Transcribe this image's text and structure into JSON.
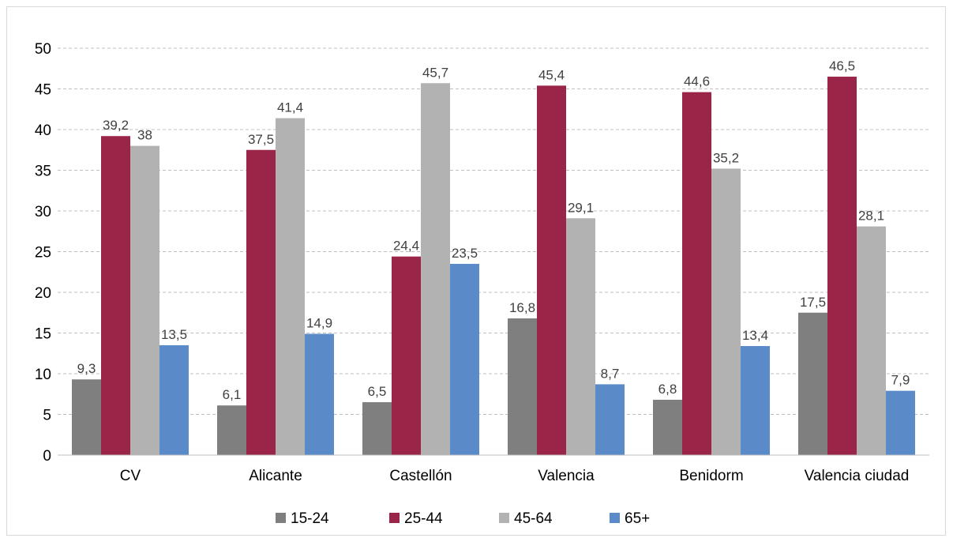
{
  "chart_data": {
    "type": "bar",
    "categories": [
      "CV",
      "Alicante",
      "Castellón",
      "Valencia",
      "Benidorm",
      "Valencia ciudad"
    ],
    "series": [
      {
        "name": "15-24",
        "color": "#7f7f7f",
        "values": [
          9.3,
          6.1,
          6.5,
          16.8,
          6.8,
          17.5
        ],
        "labels": [
          "9,3",
          "6,1",
          "6,5",
          "16,8",
          "6,8",
          "17,5"
        ]
      },
      {
        "name": "25-44",
        "color": "#9b2449",
        "values": [
          39.2,
          37.5,
          24.4,
          45.4,
          44.6,
          46.5
        ],
        "labels": [
          "39,2",
          "37,5",
          "24,4",
          "45,4",
          "44,6",
          "46,5"
        ]
      },
      {
        "name": "45-64",
        "color": "#b2b2b2",
        "values": [
          38,
          41.4,
          45.7,
          29.1,
          35.2,
          28.1
        ],
        "labels": [
          "38",
          "41,4",
          "45,7",
          "29,1",
          "35,2",
          "28,1"
        ]
      },
      {
        "name": "65+",
        "color": "#5b8ac8",
        "values": [
          13.5,
          14.9,
          23.5,
          8.7,
          13.4,
          7.9
        ],
        "labels": [
          "13,5",
          "14,9",
          "23,5",
          "8,7",
          "13,4",
          "7,9"
        ]
      }
    ],
    "ylim": [
      0,
      50
    ],
    "yticks": [
      "0",
      "5",
      "10",
      "15",
      "20",
      "25",
      "30",
      "35",
      "40",
      "45",
      "50"
    ],
    "grid": true,
    "legend_position": "bottom"
  }
}
